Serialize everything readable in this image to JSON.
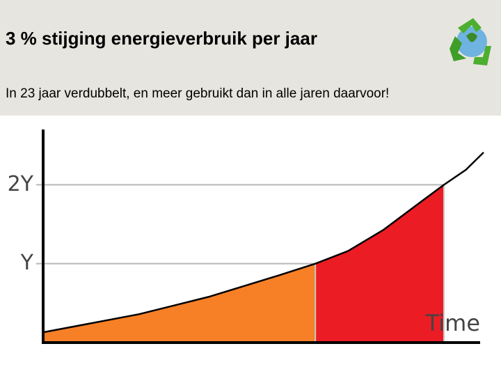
{
  "title": "3 % stijging energieverbruik per jaar",
  "subtitle": "In 23 jaar verdubbelt, en meer gebruikt dan in alle jaren daarvoor!",
  "chart_data": {
    "type": "area",
    "x_label": "Time",
    "x": [
      0,
      21.8,
      37.6,
      53.4,
      61.8,
      69.2,
      77.3,
      85.2,
      91,
      96,
      100
    ],
    "values": [
      0.13,
      0.36,
      0.58,
      0.85,
      1.0,
      1.16,
      1.43,
      1.76,
      2.0,
      2.19,
      2.41
    ],
    "xlim": [
      0,
      100
    ],
    "ylim": [
      0,
      2.7
    ],
    "yticks": [
      {
        "value": 1,
        "label": "Y"
      },
      {
        "value": 2,
        "label": "2Y"
      }
    ],
    "fill_colors": [
      "#f78026",
      "#ec1c24"
    ],
    "line_color": "#000000",
    "grid": true
  }
}
